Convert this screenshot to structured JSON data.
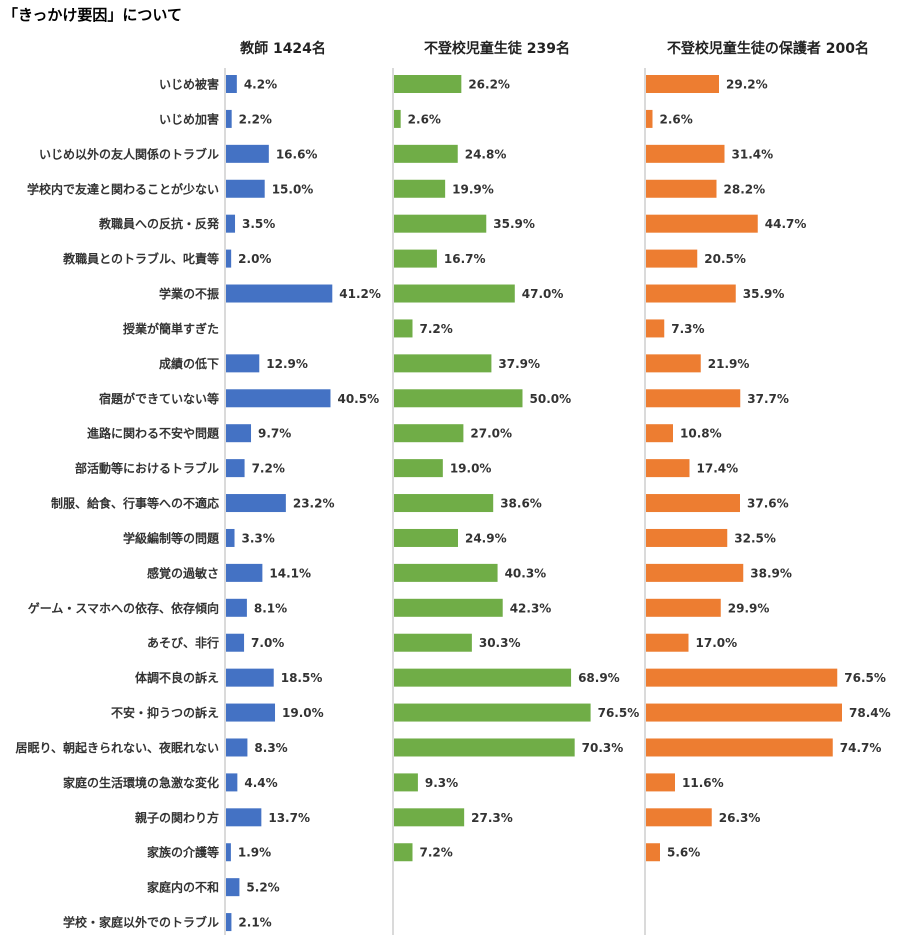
{
  "title": "「きっかけ要因」について",
  "chart_data": {
    "type": "bar",
    "orientation": "horizontal",
    "categories": [
      "いじめ被害",
      "いじめ加害",
      "いじめ以外の友人関係のトラブル",
      "学校内で友達と関わることが少ない",
      "教職員への反抗・反発",
      "教職員とのトラブル、叱責等",
      "学業の不振",
      "授業が簡単すぎた",
      "成績の低下",
      "宿題ができていない等",
      "進路に関わる不安や問題",
      "部活動等におけるトラブル",
      "制服、給食、行事等への不適応",
      "学級編制等の問題",
      "感覚の過敏さ",
      "ゲーム・スマホへの依存、依存傾向",
      "あそび、非行",
      "体調不良の訴え",
      "不安・抑うつの訴え",
      "居眠り、朝起きられない、夜眠れない",
      "家庭の生活環境の急激な変化",
      "親子の関わり方",
      "家族の介護等",
      "家庭内の不和",
      "学校・家庭以外でのトラブル"
    ],
    "series": [
      {
        "name": "教師 1424名",
        "color": "#4472c4",
        "values": [
          4.2,
          2.2,
          16.6,
          15.0,
          3.5,
          2.0,
          41.2,
          null,
          12.9,
          40.5,
          9.7,
          7.2,
          23.2,
          3.3,
          14.1,
          8.1,
          7.0,
          18.5,
          19.0,
          8.3,
          4.4,
          13.7,
          1.9,
          5.2,
          2.1
        ],
        "labels": [
          "4.2%",
          "2.2%",
          "16.6%",
          "15.0%",
          "3.5%",
          "2.0%",
          "41.2%",
          "",
          "12.9%",
          "40.5%",
          "9.7%",
          "7.2%",
          "23.2%",
          "3.3%",
          "14.1%",
          "8.1%",
          "7.0%",
          "18.5%",
          "19.0%",
          "8.3%",
          "4.4%",
          "13.7%",
          "1.9%",
          "5.2%",
          "2.1%"
        ]
      },
      {
        "name": "不登校児童生徒 239名",
        "color": "#70ad47",
        "values": [
          26.2,
          2.6,
          24.8,
          19.9,
          35.9,
          16.7,
          47.0,
          7.2,
          37.9,
          50.0,
          27.0,
          19.0,
          38.6,
          24.9,
          40.3,
          42.3,
          30.3,
          68.9,
          76.5,
          70.3,
          9.3,
          27.3,
          7.2,
          null,
          null
        ],
        "labels": [
          "26.2%",
          "2.6%",
          "24.8%",
          "19.9%",
          "35.9%",
          "16.7%",
          "47.0%",
          "7.2%",
          "37.9%",
          "50.0%",
          "27.0%",
          "19.0%",
          "38.6%",
          "24.9%",
          "40.3%",
          "42.3%",
          "30.3%",
          "68.9%",
          "76.5%",
          "70.3%",
          "9.3%",
          "27.3%",
          "7.2%",
          "",
          ""
        ]
      },
      {
        "name": "不登校児童生徒の保護者 200名",
        "color": "#ed7d31",
        "values": [
          29.2,
          2.6,
          31.4,
          28.2,
          44.7,
          20.5,
          35.9,
          7.3,
          21.9,
          37.7,
          10.8,
          17.4,
          37.6,
          32.5,
          38.9,
          29.9,
          17.0,
          76.5,
          78.4,
          74.7,
          11.6,
          26.3,
          5.6,
          null,
          null
        ],
        "labels": [
          "29.2%",
          "2.6%",
          "31.4%",
          "28.2%",
          "44.7%",
          "20.5%",
          "35.9%",
          "7.3%",
          "21.9%",
          "37.7%",
          "10.8%",
          "17.4%",
          "37.6%",
          "32.5%",
          "38.9%",
          "29.9%",
          "17.0%",
          "76.5%",
          "78.4%",
          "74.7%",
          "11.6%",
          "26.3%",
          "5.6%",
          "",
          ""
        ]
      }
    ],
    "xlim": [
      0,
      100
    ],
    "grid": false,
    "legend": "none"
  }
}
